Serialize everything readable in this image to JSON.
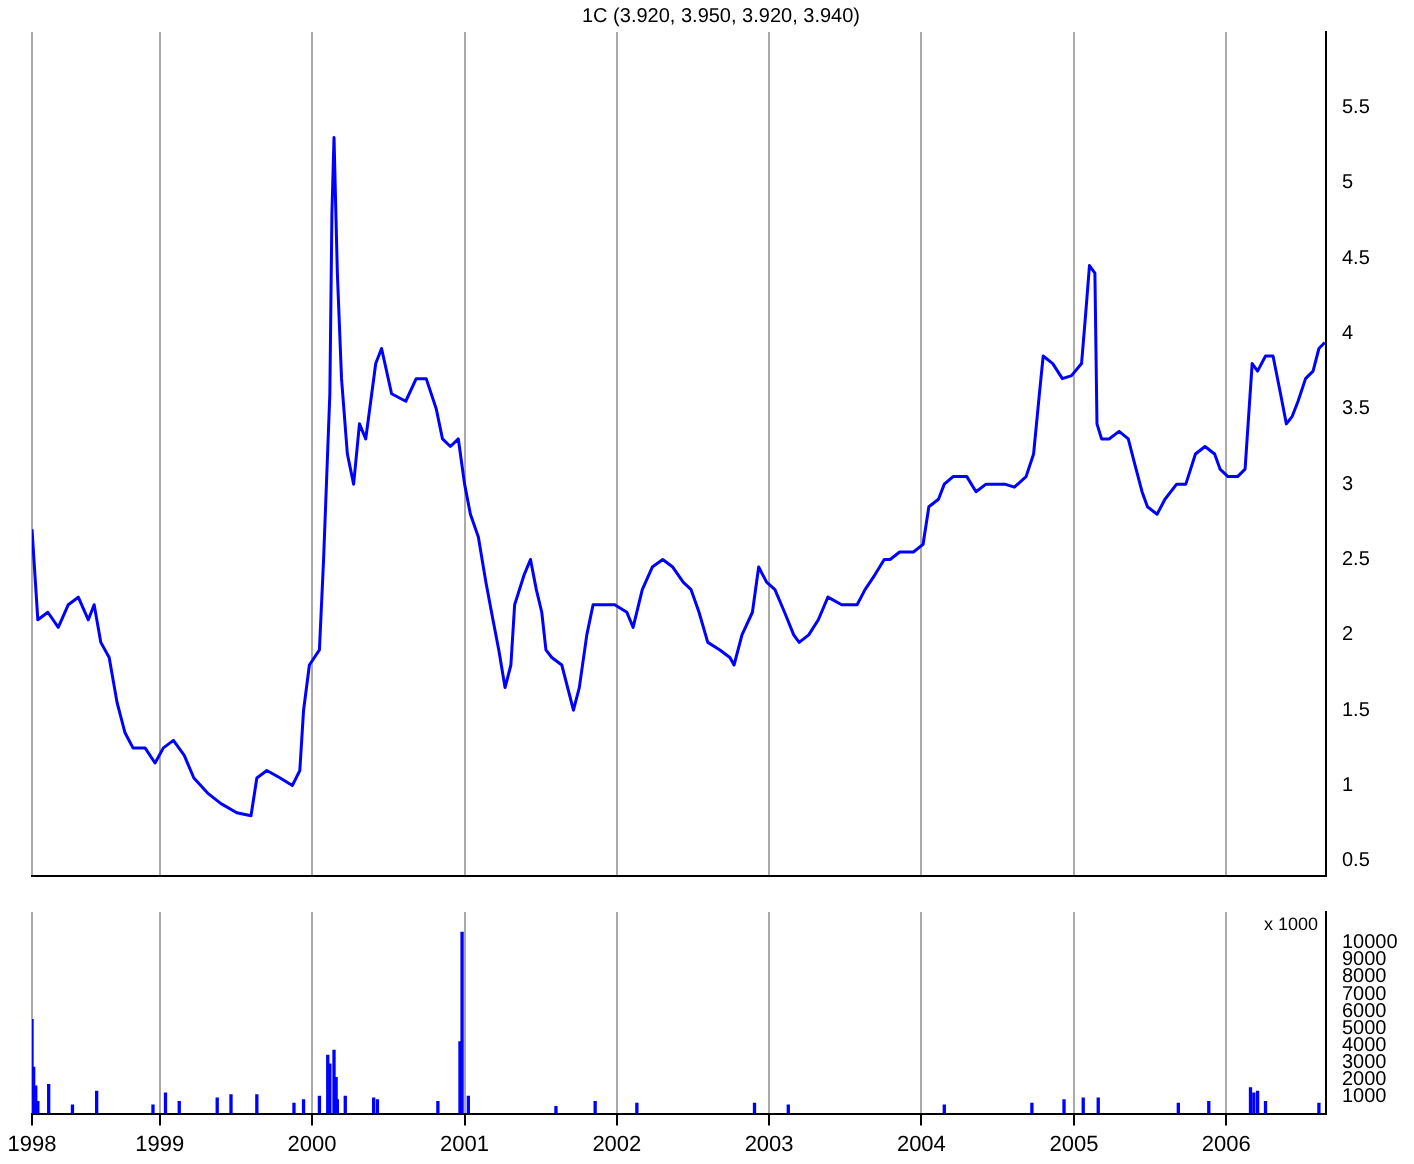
{
  "chart_data": [
    {
      "type": "line",
      "title": "1C (3.920, 3.950, 3.920, 3.940)",
      "color": "#0000ff",
      "x": [
        "1998-03-01",
        "1998-03-15",
        "1998-04-08",
        "1998-05-03",
        "1998-05-27",
        "1998-06-20",
        "1998-07-14",
        "1998-07-28",
        "1998-08-13",
        "1998-09-02",
        "1998-09-21",
        "1998-10-10",
        "1998-10-29",
        "1998-11-27",
        "1998-12-21",
        "1999-01-10",
        "1999-02-03",
        "1999-03-01",
        "1999-03-24",
        "1999-04-26",
        "1999-05-28",
        "1999-07-05",
        "1999-08-08",
        "1999-08-22",
        "1999-09-15",
        "1999-10-17",
        "1999-11-15",
        "1999-12-03",
        "1999-12-12",
        "1999-12-26",
        "2000-01-19",
        "2000-01-29",
        "2000-02-13",
        "2000-02-18",
        "2000-02-23",
        "2000-03-02",
        "2000-03-12",
        "2000-03-26",
        "2000-04-10",
        "2000-04-24",
        "2000-05-09",
        "2000-06-02",
        "2000-06-16",
        "2000-07-10",
        "2000-08-13",
        "2000-09-07",
        "2000-10-01",
        "2000-10-25",
        "2000-11-09",
        "2000-11-28",
        "2000-12-17",
        "2001-01-01",
        "2001-01-15",
        "2001-02-03",
        "2001-02-21",
        "2001-03-10",
        "2001-03-24",
        "2001-04-08",
        "2001-04-22",
        "2001-05-01",
        "2001-05-24",
        "2001-06-08",
        "2001-06-22",
        "2001-07-05",
        "2001-07-15",
        "2001-07-29",
        "2001-08-22",
        "2001-09-19",
        "2001-10-03",
        "2001-10-21",
        "2001-11-05",
        "2001-11-28",
        "2001-12-27",
        "2002-01-25",
        "2002-02-09",
        "2002-03-03",
        "2002-03-27",
        "2002-04-21",
        "2002-05-15",
        "2002-06-09",
        "2002-06-28",
        "2002-07-17",
        "2002-08-07",
        "2002-09-05",
        "2002-09-29",
        "2002-10-09",
        "2002-10-28",
        "2002-11-22",
        "2002-12-07",
        "2002-12-26",
        "2003-01-15",
        "2003-02-07",
        "2003-03-01",
        "2003-03-14",
        "2003-04-06",
        "2003-04-29",
        "2003-05-22",
        "2003-06-24",
        "2003-07-31",
        "2003-08-19",
        "2003-09-12",
        "2003-10-04",
        "2003-10-18",
        "2003-11-10",
        "2003-12-13",
        "2004-01-05",
        "2004-01-19",
        "2004-02-11",
        "2004-02-25",
        "2004-03-17",
        "2004-04-19",
        "2004-05-11",
        "2004-06-04",
        "2004-06-26",
        "2004-07-19",
        "2004-08-11",
        "2004-09-08",
        "2004-09-26",
        "2004-10-10",
        "2004-10-19",
        "2004-11-11",
        "2004-12-04",
        "2004-12-26",
        "2005-01-19",
        "2005-01-28",
        "2005-02-07",
        "2005-02-20",
        "2005-02-25",
        "2005-03-08",
        "2005-03-26",
        "2005-04-19",
        "2005-05-11",
        "2005-05-25",
        "2005-06-13",
        "2005-06-26",
        "2005-07-19",
        "2005-08-07",
        "2005-09-04",
        "2005-09-26",
        "2005-10-19",
        "2005-11-11",
        "2005-12-04",
        "2005-12-17",
        "2006-01-05",
        "2006-01-28",
        "2006-02-15",
        "2006-03-04",
        "2006-03-17",
        "2006-04-05",
        "2006-04-23",
        "2006-05-11",
        "2006-05-25",
        "2006-06-08",
        "2006-06-22",
        "2006-07-10",
        "2006-07-28",
        "2006-08-11",
        "2006-08-25"
      ],
      "values": [
        2.7,
        2.1,
        2.15,
        2.05,
        2.2,
        2.25,
        2.1,
        2.2,
        1.95,
        1.85,
        1.55,
        1.35,
        1.25,
        1.25,
        1.15,
        1.25,
        1.3,
        1.2,
        1.05,
        0.95,
        0.88,
        0.82,
        0.8,
        1.05,
        1.1,
        1.05,
        1.0,
        1.1,
        1.5,
        1.8,
        1.9,
        2.5,
        3.6,
        4.8,
        5.3,
        4.4,
        3.7,
        3.2,
        3.0,
        3.4,
        3.3,
        3.8,
        3.9,
        3.6,
        3.55,
        3.7,
        3.7,
        3.5,
        3.3,
        3.25,
        3.3,
        3.0,
        2.8,
        2.65,
        2.35,
        2.1,
        1.9,
        1.65,
        1.8,
        2.2,
        2.4,
        2.5,
        2.3,
        2.15,
        1.9,
        1.85,
        1.8,
        1.5,
        1.65,
        2.0,
        2.2,
        2.2,
        2.2,
        2.15,
        2.05,
        2.3,
        2.45,
        2.5,
        2.45,
        2.35,
        2.3,
        2.15,
        1.95,
        1.9,
        1.85,
        1.8,
        2.0,
        2.15,
        2.45,
        2.35,
        2.3,
        2.15,
        2.0,
        1.95,
        2.0,
        2.1,
        2.25,
        2.2,
        2.2,
        2.3,
        2.4,
        2.5,
        2.5,
        2.55,
        2.55,
        2.6,
        2.85,
        2.9,
        3.0,
        3.05,
        3.05,
        2.95,
        3.0,
        3.0,
        3.0,
        2.98,
        3.05,
        3.2,
        3.6,
        3.85,
        3.8,
        3.7,
        3.72,
        3.8,
        4.1,
        4.45,
        4.4,
        3.4,
        3.3,
        3.3,
        3.35,
        3.3,
        3.15,
        2.95,
        2.85,
        2.8,
        2.9,
        3.0,
        3.0,
        3.2,
        3.25,
        3.2,
        3.1,
        3.05,
        3.05,
        3.1,
        3.8,
        3.75,
        3.85,
        3.85,
        3.6,
        3.4,
        3.45,
        3.55,
        3.7,
        3.75,
        3.9,
        3.94
      ],
      "xlim": [
        "1998-03-01",
        "2006-08-28"
      ],
      "xticks": [
        {
          "value": "1998-03-01",
          "label": null
        },
        {
          "value": "1999",
          "label": null
        },
        {
          "value": "2000",
          "label": null
        },
        {
          "value": "2001",
          "label": null
        },
        {
          "value": "2002",
          "label": null
        },
        {
          "value": "2003",
          "label": null
        },
        {
          "value": "2004",
          "label": null
        },
        {
          "value": "2005",
          "label": null
        },
        {
          "value": "2006",
          "label": null
        }
      ],
      "ylim": [
        0.4,
        6.0
      ],
      "yticks": [
        0.5,
        1.0,
        1.5,
        2.0,
        2.5,
        3.0,
        3.5,
        4.0,
        4.5,
        5.0,
        5.5
      ],
      "grid": "x",
      "tick_labels": "y"
    },
    {
      "type": "bar",
      "color": "#0000ff",
      "annotations": [
        "x 1000"
      ],
      "x": [
        "1998-03-01",
        "1998-03-05",
        "1998-03-10",
        "1998-03-15",
        "1998-04-10",
        "1998-06-06",
        "1998-08-03",
        "1998-12-16",
        "1999-01-15",
        "1999-02-17",
        "1999-05-19",
        "1999-06-21",
        "1999-08-22",
        "1999-11-19",
        "1999-12-12",
        "2000-01-19",
        "2000-02-08",
        "2000-02-13",
        "2000-02-23",
        "2000-02-28",
        "2000-03-02",
        "2000-03-21",
        "2000-05-28",
        "2000-06-06",
        "2000-10-29",
        "2000-12-21",
        "2000-12-26",
        "2001-01-10",
        "2001-08-08",
        "2001-11-10",
        "2002-02-18",
        "2002-11-27",
        "2003-02-16",
        "2004-02-25",
        "2004-09-22",
        "2004-12-08",
        "2005-01-23",
        "2005-02-28",
        "2005-09-08",
        "2005-11-20",
        "2006-02-28",
        "2006-03-08",
        "2006-03-17",
        "2006-04-05",
        "2006-08-11"
      ],
      "values": [
        5500,
        2700,
        1600,
        700,
        1700,
        500,
        1300,
        500,
        1200,
        700,
        900,
        1100,
        1100,
        600,
        800,
        1000,
        3400,
        2900,
        3700,
        2100,
        800,
        1000,
        900,
        800,
        700,
        4200,
        10600,
        1000,
        400,
        700,
        600,
        600,
        500,
        500,
        600,
        800,
        900,
        900,
        600,
        700,
        1500,
        1200,
        1300,
        700,
        600
      ],
      "xlim": [
        "1998-03-01",
        "2006-08-28"
      ],
      "xticks": [
        {
          "value": "1998-03-01",
          "label": "1998"
        },
        "1999",
        "2000",
        "2001",
        "2002",
        "2003",
        "2004",
        "2005",
        "2006"
      ],
      "ylim": [
        0,
        11800
      ],
      "yticks": [
        1000,
        2000,
        3000,
        4000,
        5000,
        6000,
        7000,
        8000,
        9000,
        10000
      ],
      "grid": "x"
    }
  ]
}
